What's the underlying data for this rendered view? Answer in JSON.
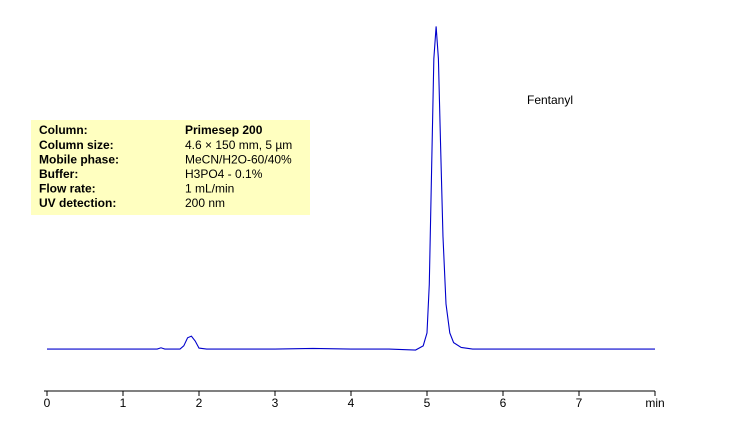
{
  "chart_data": {
    "type": "line",
    "x": [
      0,
      0.5,
      1.0,
      1.45,
      1.5,
      1.55,
      1.75,
      1.8,
      1.85,
      1.9,
      1.95,
      2.0,
      2.1,
      2.5,
      3.0,
      3.5,
      4.0,
      4.5,
      4.85,
      4.95,
      5.0,
      5.03,
      5.06,
      5.09,
      5.12,
      5.15,
      5.18,
      5.21,
      5.25,
      5.3,
      5.35,
      5.45,
      5.6,
      6.0,
      7.0,
      8.0
    ],
    "series": [
      {
        "color": "#0000cc",
        "values": [
          0,
          0,
          0,
          0,
          0.4,
          0,
          0,
          1,
          3.5,
          4,
          2.5,
          0.3,
          0,
          0,
          0,
          0.2,
          0,
          0,
          -0.3,
          1,
          5,
          20,
          55,
          90,
          100,
          90,
          62,
          35,
          14,
          5,
          2,
          0.5,
          0,
          0,
          0,
          0
        ]
      }
    ],
    "xlim": [
      0,
      8
    ],
    "xticks": [
      0,
      1,
      2,
      3,
      4,
      5,
      6,
      7,
      {
        "value": 8,
        "label": "min"
      }
    ],
    "ylim": [
      -13,
      102
    ],
    "annotations": [
      {
        "text": "Fentanyl",
        "x": 5.12
      }
    ],
    "conditions": {
      "labels": [
        "Column:",
        "Column size:",
        "Mobile phase:",
        "Buffer:",
        "Flow rate:",
        "UV detection:"
      ],
      "values": [
        "Primesep 200",
        "4.6 × 150 mm, 5 µm",
        "MeCN/H2O-60/40%",
        "H3PO4  - 0.1%",
        "1 mL/min",
        "200 nm"
      ]
    }
  }
}
